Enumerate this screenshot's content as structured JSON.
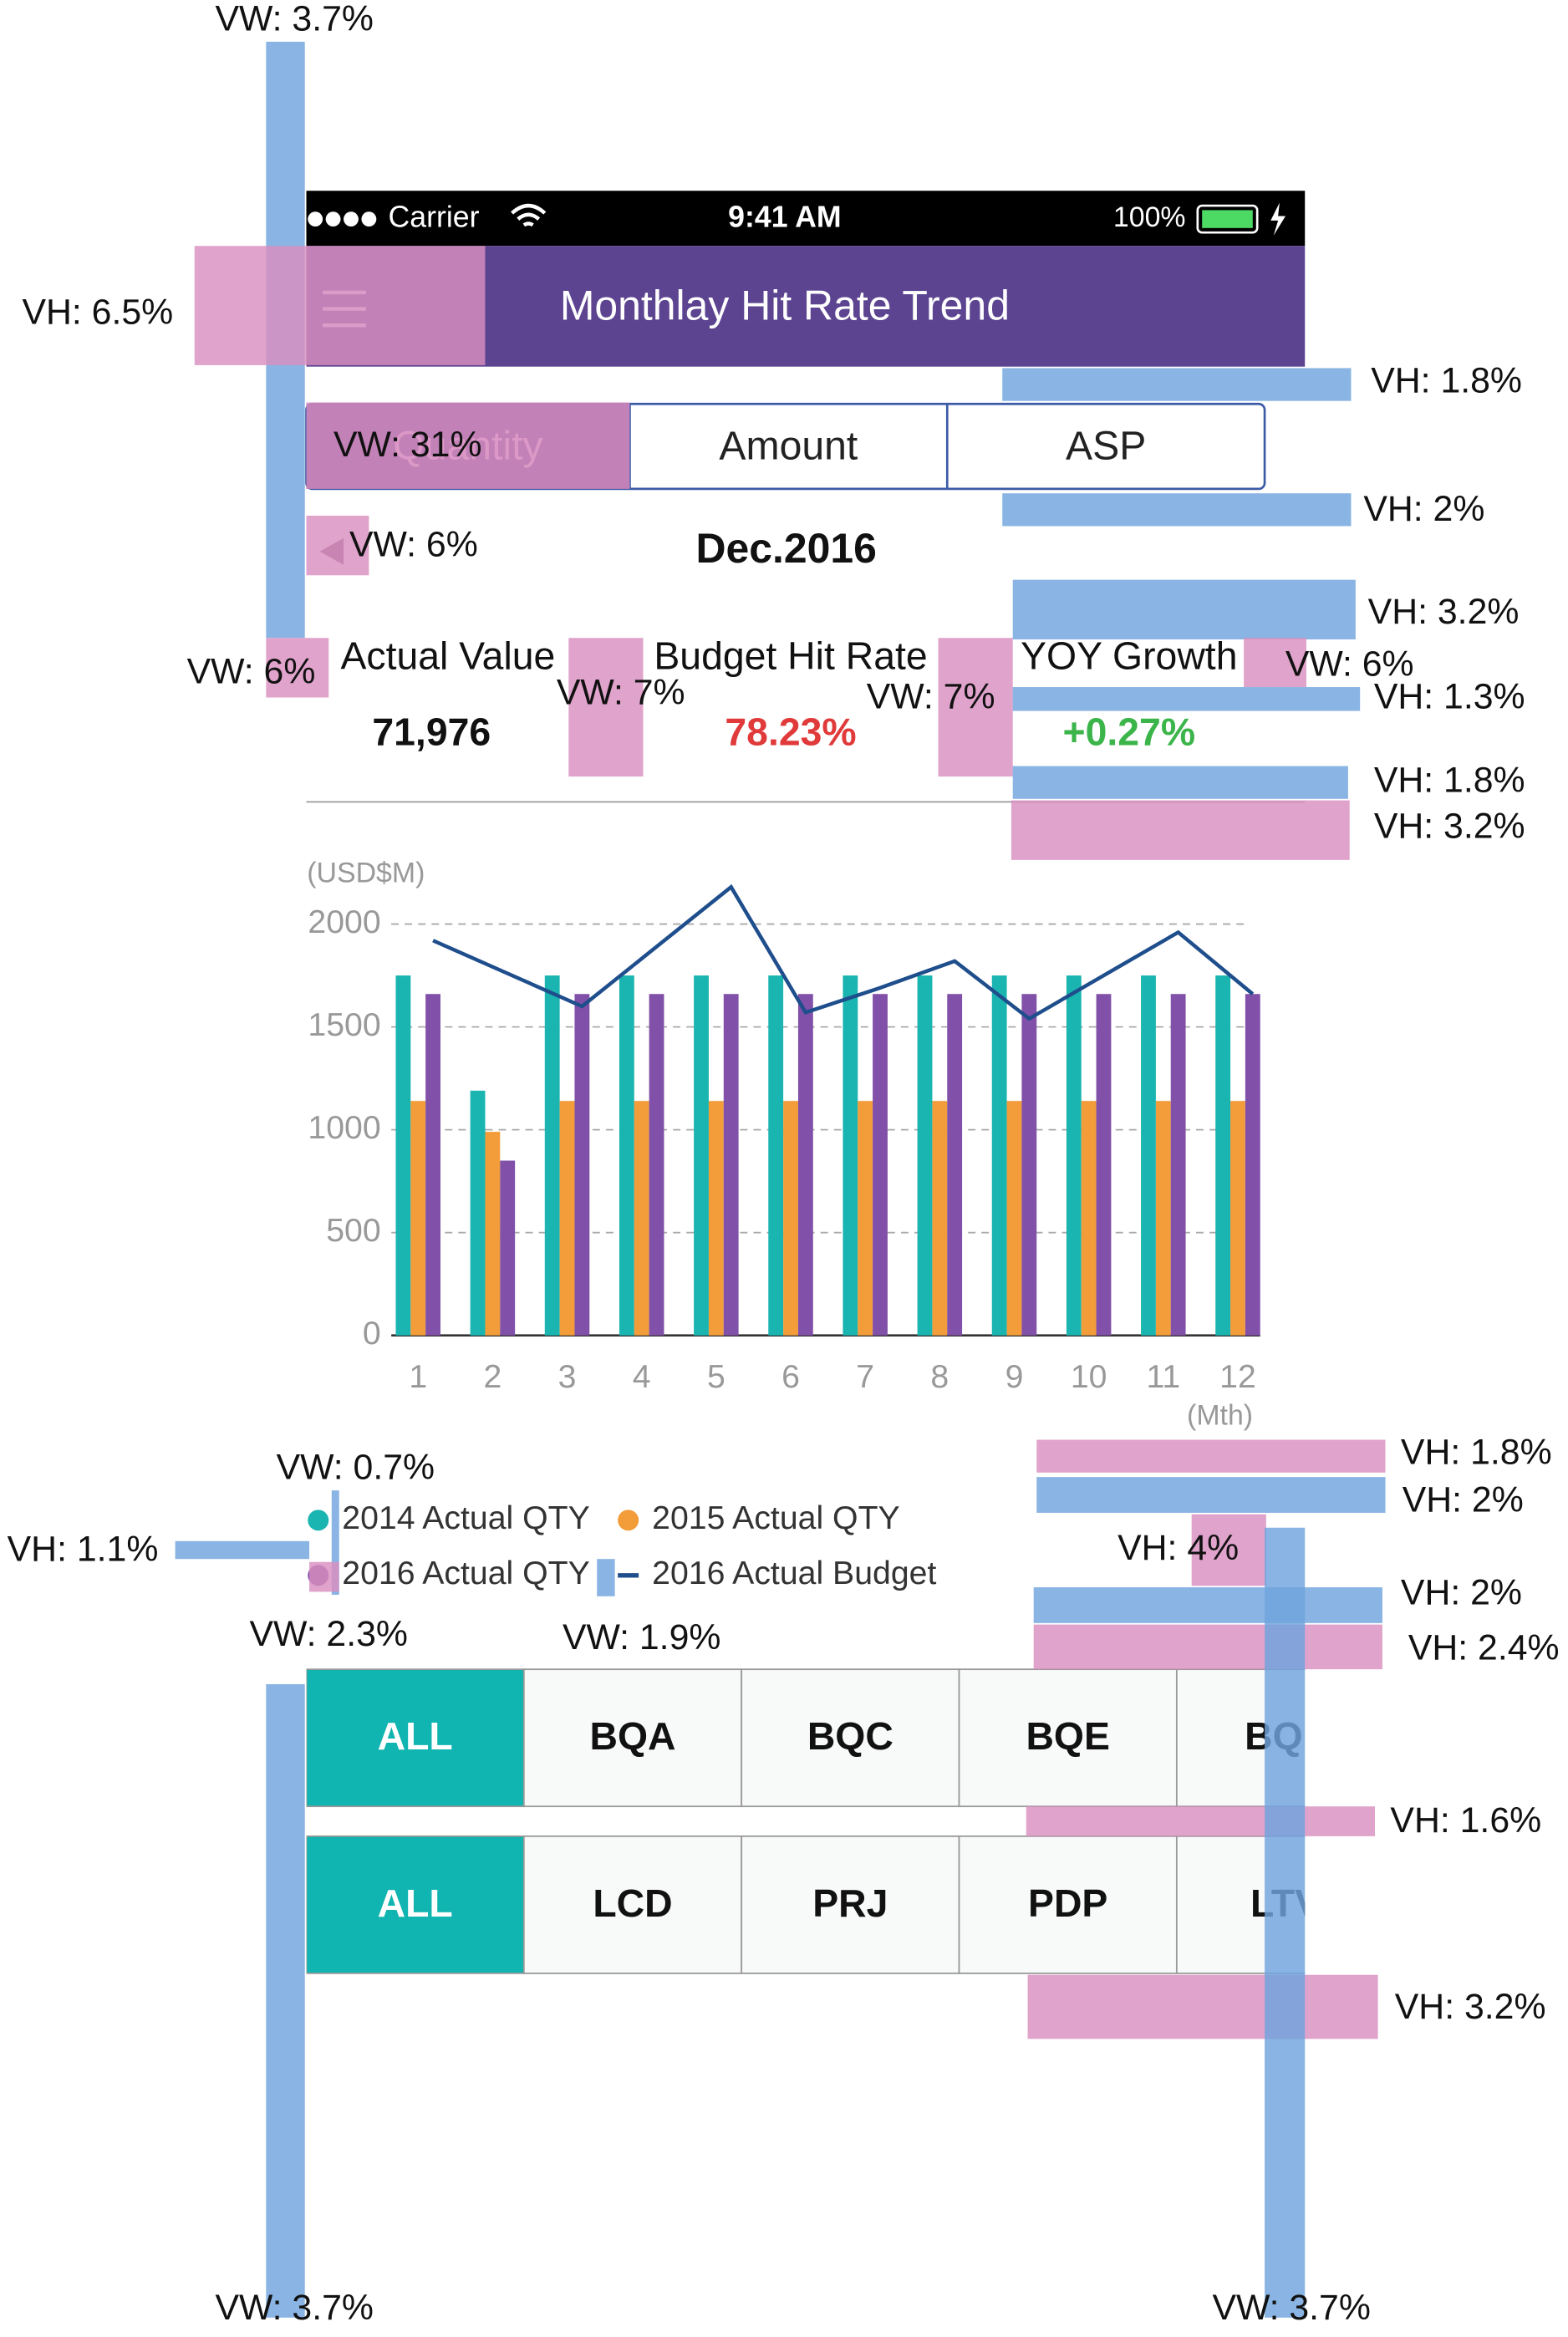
{
  "status_bar": {
    "carrier": "Carrier",
    "time": "9:41 AM",
    "battery": "100%"
  },
  "nav": {
    "title": "Monthlay Hit Rate Trend"
  },
  "tabs": [
    "Quantity",
    "Amount",
    "ASP"
  ],
  "date": "Dec.2016",
  "metrics": [
    {
      "label": "Actual Value",
      "value": "71,976"
    },
    {
      "label": "Budget Hit Rate",
      "value": "78.23%"
    },
    {
      "label": "YOY Growth",
      "value": "+0.27%"
    }
  ],
  "chart_data": {
    "type": "bar",
    "y_unit": "(USD$M)",
    "x_unit": "(Mth)",
    "categories": [
      "1",
      "2",
      "3",
      "4",
      "5",
      "6",
      "7",
      "8",
      "9",
      "10",
      "11",
      "12"
    ],
    "series": [
      {
        "name": "2014 Actual QTY",
        "color": "#1ab5b0",
        "values": [
          1750,
          1190,
          1750,
          1750,
          1750,
          1750,
          1750,
          1750,
          1750,
          1750,
          1750,
          1750
        ]
      },
      {
        "name": "2015 Actual QTY",
        "color": "#f39c3a",
        "values": [
          1140,
          990,
          1140,
          1140,
          1140,
          1140,
          1140,
          1140,
          1140,
          1140,
          1140,
          1140
        ]
      },
      {
        "name": "2016 Actual QTY",
        "color": "#8150a8",
        "values": [
          1660,
          850,
          1660,
          1660,
          1660,
          1660,
          1660,
          1660,
          1660,
          1660,
          1660,
          1660
        ]
      },
      {
        "name": "2016 Actual  Budget",
        "color": "#1f4e8c",
        "type": "line",
        "values": [
          1920,
          1760,
          1600,
          1890,
          2180,
          1570,
          1690,
          1820,
          1540,
          1750,
          1960,
          1660
        ]
      }
    ],
    "ylim": [
      0,
      2200
    ],
    "yticks": [
      0,
      500,
      1000,
      1500,
      2000
    ],
    "grid": true
  },
  "filters": [
    [
      "ALL",
      "BQA",
      "BQC",
      "BQE",
      "BQL"
    ],
    [
      "ALL",
      "LCD",
      "PRJ",
      "PDP",
      "LTV"
    ]
  ],
  "annotations": [
    "VW: 3.7%",
    "VH: 6.5%",
    "VH: 1.8%",
    "VW: 31%",
    "VH: 2%",
    "VW: 6%",
    "VH: 3.2%",
    "VW: 6%",
    "VW: 7%",
    "VW: 7%",
    "VW: 6%",
    "VH: 1.3%",
    "VH: 1.8%",
    "VH: 3.2%",
    "VH: 1.8%",
    "VH: 2%",
    "VW: 0.7%",
    "VH: 1.1%",
    "VH: 4%",
    "VH: 2%",
    "VH: 2.4%",
    "VW: 2.3%",
    "VW: 1.9%",
    "VH: 1.6%",
    "VH: 3.2%",
    "VW: 3.7%",
    "VW: 3.7%"
  ]
}
